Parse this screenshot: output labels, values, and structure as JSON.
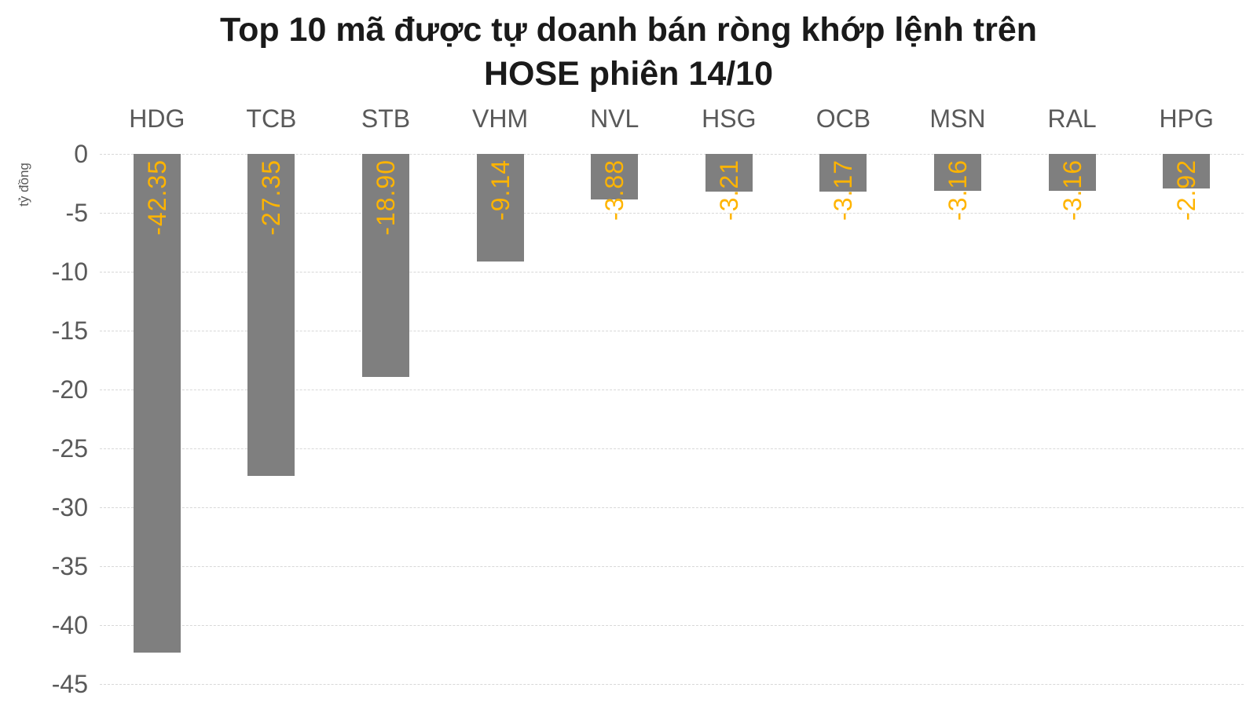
{
  "chart_data": {
    "type": "bar",
    "title": "Top 10 mã được tự doanh bán ròng khớp lệnh trên HOSE phiên 14/10",
    "title_lines": [
      "Top 10 mã được tự doanh bán ròng khớp lệnh trên",
      "HOSE phiên 14/10"
    ],
    "ylabel": "tỷ đồng",
    "categories": [
      "HDG",
      "TCB",
      "STB",
      "VHM",
      "NVL",
      "HSG",
      "OCB",
      "MSN",
      "RAL",
      "HPG"
    ],
    "values": [
      -42.35,
      -27.35,
      -18.9,
      -9.14,
      -3.88,
      -3.21,
      -3.17,
      -3.16,
      -3.16,
      -2.92
    ],
    "value_labels": [
      "-42.35",
      "-27.35",
      "-18.90",
      "-9.14",
      "-3.88",
      "-3.21",
      "-3.17",
      "-3.16",
      "-3.16",
      "-2.92"
    ],
    "yticks": [
      0,
      -5,
      -10,
      -15,
      -20,
      -25,
      -30,
      -35,
      -40,
      -45
    ],
    "ylim": [
      -45,
      0
    ],
    "grid": "horizontal-dashed",
    "legend": "none",
    "colors": {
      "bar": "#7f7f7f",
      "value_label": "#ffb400",
      "axis_text": "#595959",
      "title_text": "#1a1a1a",
      "gridline": "#d8d8d8",
      "background": "#ffffff"
    }
  }
}
